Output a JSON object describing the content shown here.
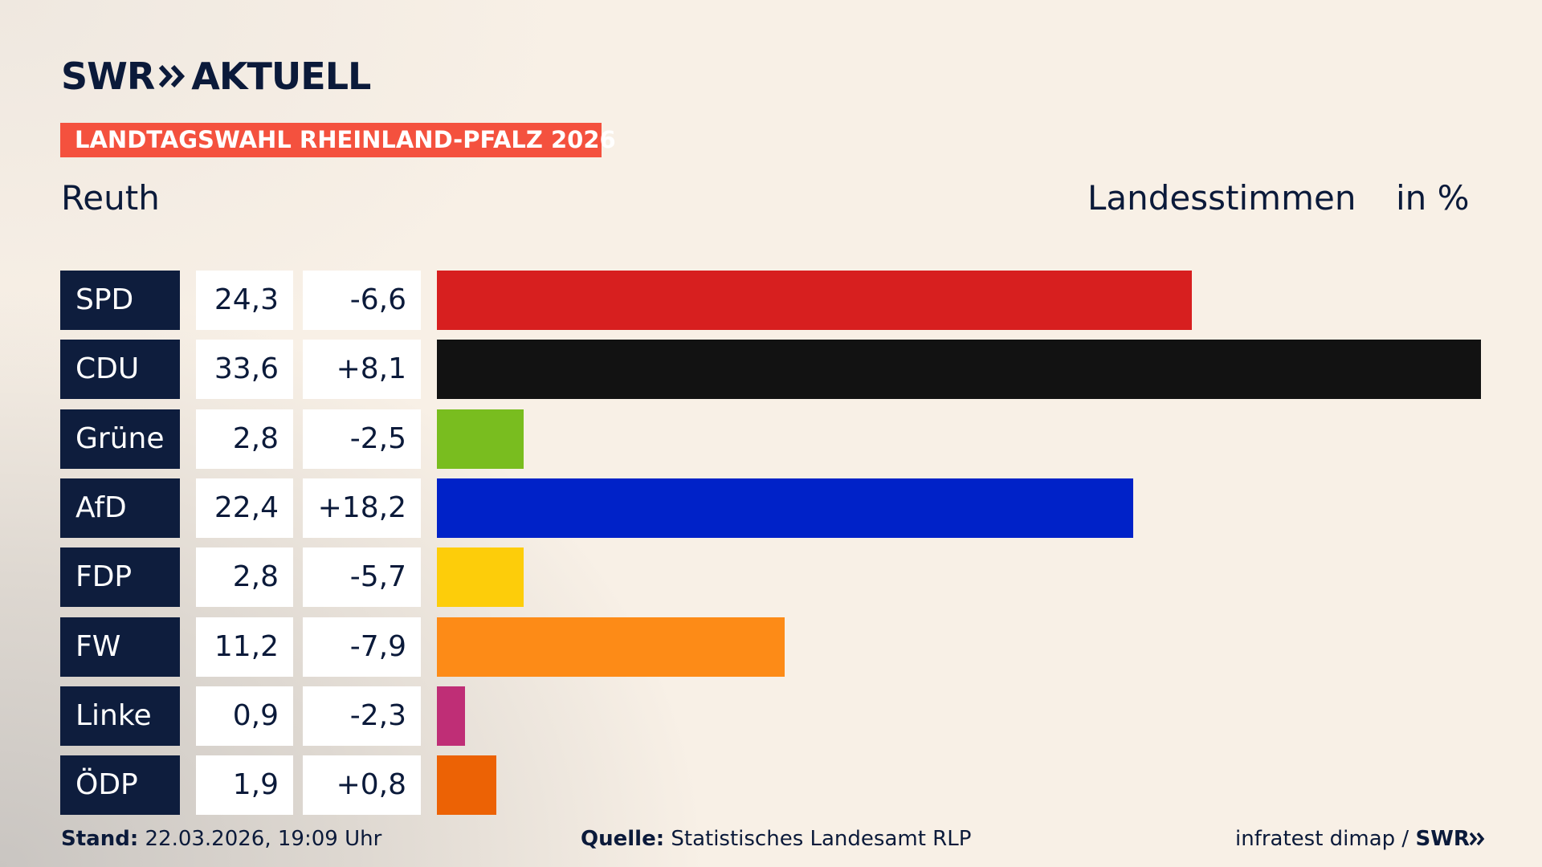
{
  "brand": {
    "name": "SWR",
    "section": "AKTUELL"
  },
  "tag": "LANDTAGSWAHL RHEINLAND-PFALZ 2026",
  "chart_data": {
    "type": "bar",
    "orientation": "horizontal",
    "title": "Reuth",
    "measure": "Landesstimmen",
    "unit": "in %",
    "categories": [
      "SPD",
      "CDU",
      "Grüne",
      "AfD",
      "FDP",
      "FW",
      "Linke",
      "ÖDP"
    ],
    "values": [
      24.3,
      33.6,
      2.8,
      22.4,
      2.8,
      11.2,
      0.9,
      1.9
    ],
    "value_labels": [
      "24,3",
      "33,6",
      "2,8",
      "22,4",
      "2,8",
      "11,2",
      "0,9",
      "1,9"
    ],
    "changes": [
      -6.6,
      8.1,
      -2.5,
      18.2,
      -5.7,
      -7.9,
      -2.3,
      0.8
    ],
    "change_labels": [
      "-6,6",
      "+8,1",
      "-2,5",
      "+18,2",
      "-5,7",
      "-7,9",
      "-2,3",
      "+0,8"
    ],
    "colors": [
      "#d71f1f",
      "#121212",
      "#79bd1f",
      "#0022c8",
      "#fdcd0a",
      "#fd8b17",
      "#bf2e76",
      "#ec6205"
    ]
  },
  "footer": {
    "stand_label": "Stand:",
    "stand": "22.03.2026, 19:09 Uhr",
    "source_label": "Quelle:",
    "source": "Statistisches Landesamt RLP",
    "credit": "infratest dimap /",
    "credit_brand": "SWR"
  }
}
